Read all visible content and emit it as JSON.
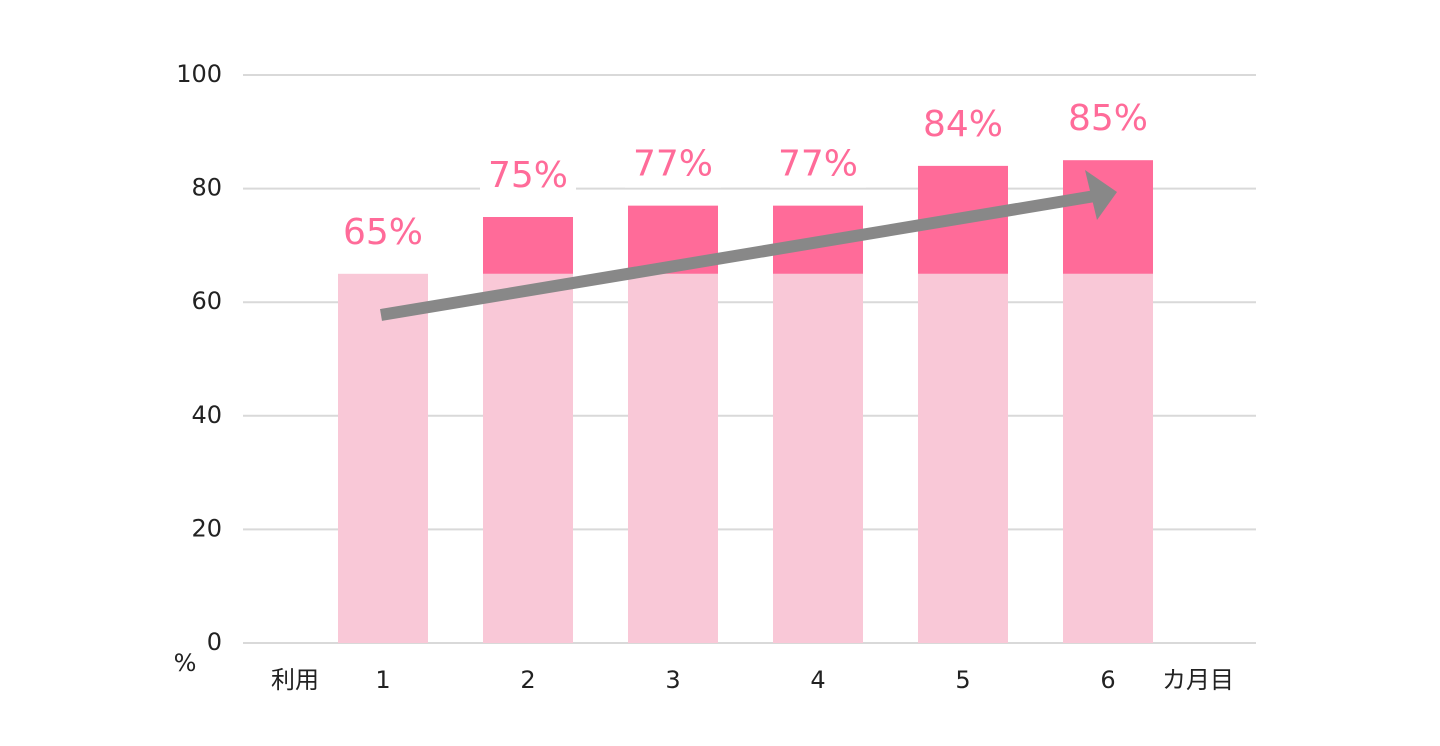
{
  "chart_data": {
    "type": "stacked-bar",
    "categories": [
      "1",
      "2",
      "3",
      "4",
      "5",
      "6"
    ],
    "x_label_start": "利用",
    "x_label_end": "カ月目",
    "y_unit": "%",
    "series": [
      {
        "color": "#f9c8d7",
        "values": [
          65,
          65,
          65,
          65,
          65,
          65
        ]
      },
      {
        "color": "#ff6b99",
        "values": [
          0,
          10,
          12,
          12,
          19,
          20
        ]
      }
    ],
    "totals": [
      65,
      75,
      77,
      77,
      84,
      85
    ],
    "total_labels": [
      "65%",
      "75%",
      "77%",
      "77%",
      "84%",
      "85%"
    ],
    "ylim": [
      0,
      100
    ],
    "yticks": [
      0,
      20,
      40,
      60,
      80,
      100
    ],
    "grid": true
  }
}
